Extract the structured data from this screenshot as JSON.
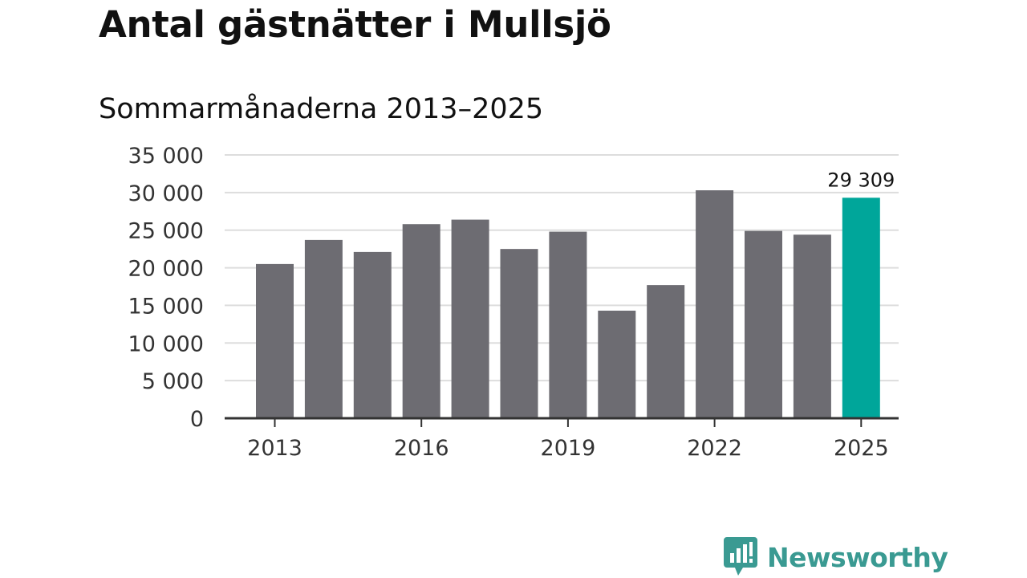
{
  "chart_data": {
    "type": "bar",
    "title": "Antal gästnätter i Mullsjö",
    "subtitle": "Sommarmånaderna 2013–2025",
    "categories": [
      2013,
      2014,
      2015,
      2016,
      2017,
      2018,
      2019,
      2020,
      2021,
      2022,
      2023,
      2024,
      2025
    ],
    "values": [
      20500,
      23700,
      22100,
      25800,
      26400,
      22500,
      24800,
      14300,
      17700,
      30300,
      24900,
      24400,
      29309
    ],
    "ylim": [
      0,
      35000
    ],
    "yticks": [
      {
        "value": 0,
        "label": "0"
      },
      {
        "value": 5000,
        "label": "5 000"
      },
      {
        "value": 10000,
        "label": "10 000"
      },
      {
        "value": 15000,
        "label": "15 000"
      },
      {
        "value": 20000,
        "label": "20 000"
      },
      {
        "value": 25000,
        "label": "25 000"
      },
      {
        "value": 30000,
        "label": "30 000"
      },
      {
        "value": 35000,
        "label": "35 000"
      }
    ],
    "xticks": [
      {
        "value": 2013,
        "label": "2013"
      },
      {
        "value": 2016,
        "label": "2016"
      },
      {
        "value": 2019,
        "label": "2019"
      },
      {
        "value": 2022,
        "label": "2022"
      },
      {
        "value": 2025,
        "label": "2025"
      }
    ],
    "highlight": {
      "category": 2025,
      "label": "29 309"
    },
    "grid": true,
    "colors": {
      "bar": "#6d6c72",
      "highlight": "#00a69a",
      "grid": "#dddddd",
      "axis": "#333333"
    }
  },
  "brand": {
    "name": "Newsworthy",
    "color": "#3a9a92",
    "icon": "newsworthy-logo-icon"
  }
}
